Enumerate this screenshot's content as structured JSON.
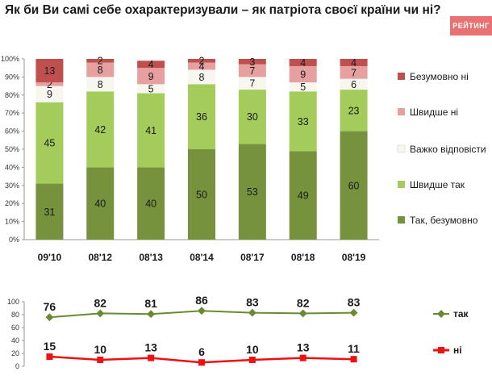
{
  "title": "Як би Ви самі себе охарактеризували – як патріота своєї країни чи ні?",
  "logo_text": "РЕЙТИНГ",
  "chart_data": [
    {
      "type": "bar",
      "stacked": true,
      "categories": [
        "09'10",
        "08'12",
        "08'13",
        "08'14",
        "08'17",
        "08'18",
        "08'19"
      ],
      "series": [
        {
          "name": "Так, безумовно",
          "color": "#76923c",
          "values": [
            31,
            40,
            40,
            50,
            53,
            49,
            60
          ]
        },
        {
          "name": "Швидше так",
          "color": "#a4cc5a",
          "values": [
            45,
            42,
            41,
            36,
            30,
            33,
            23
          ]
        },
        {
          "name": "Важко відповісти",
          "color": "#f7f7f0",
          "values": [
            9,
            8,
            5,
            8,
            7,
            5,
            6
          ]
        },
        {
          "name": "Швидше ні",
          "color": "#e6a0a0",
          "values": [
            2,
            8,
            9,
            4,
            7,
            9,
            7
          ]
        },
        {
          "name": "Безумовно ні",
          "color": "#c0504d",
          "values": [
            13,
            2,
            4,
            2,
            3,
            4,
            4
          ]
        }
      ],
      "yticks": [
        "0%",
        "10%",
        "20%",
        "30%",
        "40%",
        "50%",
        "60%",
        "70%",
        "80%",
        "90%",
        "100%"
      ],
      "ylim": [
        0,
        100
      ],
      "grid": false,
      "legend": "right"
    },
    {
      "type": "line",
      "categories": [
        "09'10",
        "08'12",
        "08'13",
        "08'14",
        "08'17",
        "08'18",
        "08'19"
      ],
      "series": [
        {
          "name": "так",
          "color": "#6a8a32",
          "values": [
            76,
            82,
            81,
            86,
            83,
            82,
            83
          ]
        },
        {
          "name": "ні",
          "color": "#ee1111",
          "values": [
            15,
            10,
            13,
            6,
            10,
            13,
            11
          ]
        }
      ],
      "yticks": [
        "0",
        "20",
        "40",
        "60",
        "80",
        "100"
      ],
      "ylim": [
        0,
        100
      ],
      "legend": "right"
    }
  ]
}
